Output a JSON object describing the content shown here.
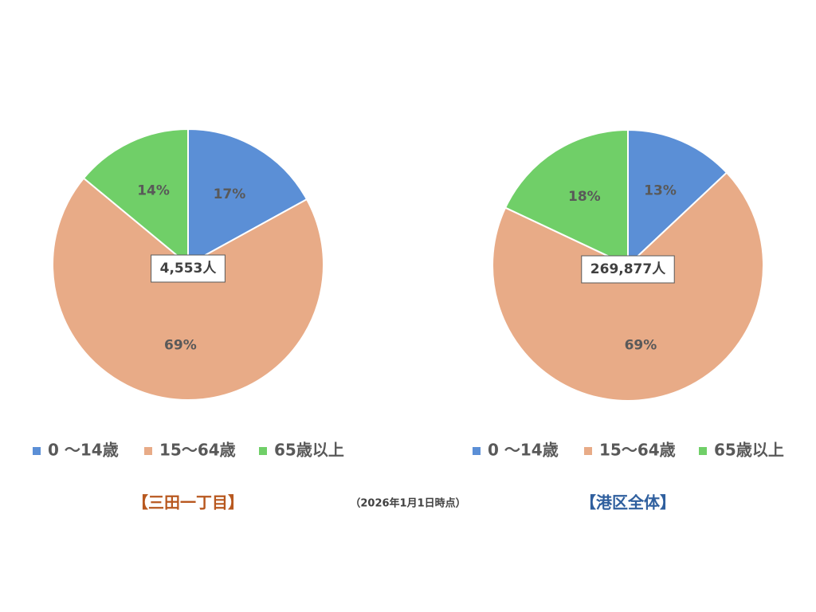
{
  "chart_data": [
    {
      "type": "pie",
      "title": "【三田一丁目】",
      "title_color": "#b8581f",
      "annotation": "4,553人",
      "categories": [
        "0 ～14歳",
        "15～64歳",
        "65歳以上"
      ],
      "values": [
        17,
        69,
        14
      ],
      "value_labels": [
        "17%",
        "69%",
        "14%"
      ],
      "colors": [
        "#5b8fd6",
        "#e8ab87",
        "#70cf68"
      ]
    },
    {
      "type": "pie",
      "title": "【港区全体】",
      "title_color": "#2f5f9e",
      "annotation": "269,877人",
      "categories": [
        "0 ～14歳",
        "15～64歳",
        "65歳以上"
      ],
      "values": [
        13,
        69,
        18
      ],
      "value_labels": [
        "13%",
        "69%",
        "18%"
      ],
      "colors": [
        "#5b8fd6",
        "#e8ab87",
        "#70cf68"
      ]
    }
  ],
  "footnote": "（2026年1月1日時点）"
}
